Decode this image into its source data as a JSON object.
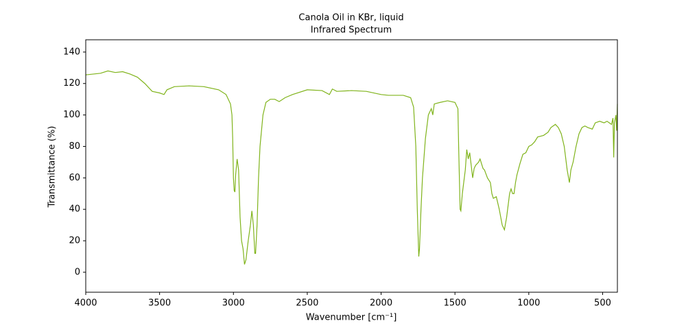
{
  "chart_data": {
    "type": "line",
    "title": "Canola Oil in KBr, liquid",
    "subtitle": "Infrared Spectrum",
    "x_label": "Wavenumber [cm⁻¹]",
    "y_label": "Transmittance (%)",
    "color": "#7fb31a",
    "xlim": [
      4000,
      400
    ],
    "ylim": [
      -12.7,
      147.8
    ],
    "xticks": [
      4000,
      3500,
      3000,
      2500,
      2000,
      1500,
      1000,
      500
    ],
    "yticks": [
      0,
      20,
      40,
      60,
      80,
      100,
      120,
      140
    ],
    "x": [
      4000,
      3900,
      3850,
      3800,
      3750,
      3700,
      3650,
      3600,
      3550,
      3500,
      3470,
      3450,
      3400,
      3300,
      3200,
      3100,
      3050,
      3020,
      3010,
      3005,
      3000,
      2995,
      2990,
      2985,
      2975,
      2965,
      2955,
      2945,
      2935,
      2925,
      2915,
      2900,
      2885,
      2875,
      2865,
      2855,
      2850,
      2840,
      2830,
      2820,
      2800,
      2780,
      2750,
      2720,
      2690,
      2650,
      2600,
      2500,
      2400,
      2350,
      2330,
      2300,
      2200,
      2100,
      2000,
      1950,
      1850,
      1800,
      1780,
      1765,
      1755,
      1745,
      1740,
      1730,
      1720,
      1700,
      1680,
      1660,
      1650,
      1640,
      1600,
      1550,
      1500,
      1480,
      1475,
      1465,
      1460,
      1450,
      1430,
      1420,
      1410,
      1400,
      1390,
      1380,
      1370,
      1360,
      1340,
      1330,
      1310,
      1300,
      1280,
      1260,
      1250,
      1240,
      1220,
      1200,
      1180,
      1165,
      1150,
      1130,
      1120,
      1110,
      1100,
      1090,
      1080,
      1060,
      1040,
      1020,
      1000,
      980,
      960,
      940,
      900,
      870,
      850,
      820,
      800,
      780,
      760,
      740,
      725,
      715,
      700,
      680,
      660,
      640,
      620,
      600,
      570,
      550,
      520,
      490,
      470,
      440,
      430,
      425,
      420,
      410,
      405,
      400
    ],
    "values": [
      125.5,
      126.5,
      128,
      127,
      127.5,
      126,
      124,
      120,
      115,
      114,
      113,
      116,
      118,
      118.5,
      118,
      116,
      113,
      107,
      100,
      85,
      60,
      52,
      51,
      62,
      72,
      65,
      35,
      20,
      15,
      5,
      8,
      20,
      30,
      39,
      30,
      12,
      12,
      30,
      60,
      80,
      100,
      108,
      110,
      110,
      108.5,
      111,
      113,
      116,
      115.5,
      113,
      116.5,
      115,
      115.5,
      115,
      113,
      112.5,
      112.5,
      111,
      105,
      80,
      40,
      10,
      15,
      40,
      60,
      85,
      100,
      104,
      100,
      107,
      108,
      109,
      108,
      104,
      80,
      40,
      39,
      50,
      65,
      78,
      72,
      76,
      68,
      60,
      66,
      68,
      70,
      72,
      66,
      65,
      60,
      57,
      50,
      47,
      48,
      40,
      30,
      27,
      35,
      50,
      53,
      50,
      50,
      57,
      62,
      69,
      75,
      76,
      80,
      81,
      83,
      86,
      87,
      89,
      92,
      94,
      92,
      88,
      80,
      65,
      57,
      65,
      70,
      80,
      88,
      92,
      93,
      92,
      91,
      95,
      96,
      95,
      96,
      94,
      98,
      73,
      95,
      100,
      90,
      107
    ]
  }
}
